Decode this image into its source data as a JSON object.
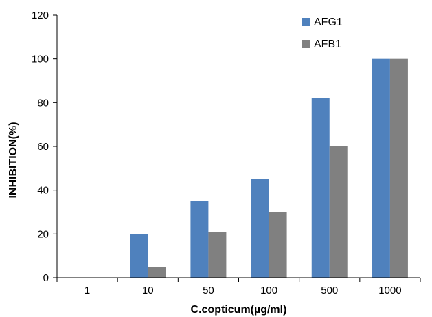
{
  "chart_data": {
    "type": "bar",
    "categories": [
      "1",
      "10",
      "50",
      "100",
      "500",
      "1000"
    ],
    "series": [
      {
        "name": "AFG1",
        "values": [
          0,
          20,
          35,
          45,
          82,
          100
        ],
        "color": "#4f81bd"
      },
      {
        "name": "AFB1",
        "values": [
          0,
          5,
          21,
          30,
          60,
          100
        ],
        "color": "#808080"
      }
    ],
    "title": "",
    "xlabel": "C.copticum(µg/ml)",
    "ylabel": "INHIBITION(%)",
    "ylim": [
      0,
      120
    ],
    "yticks": [
      0,
      20,
      40,
      60,
      80,
      100,
      120
    ],
    "grid": false,
    "legend_position": "top-right"
  }
}
